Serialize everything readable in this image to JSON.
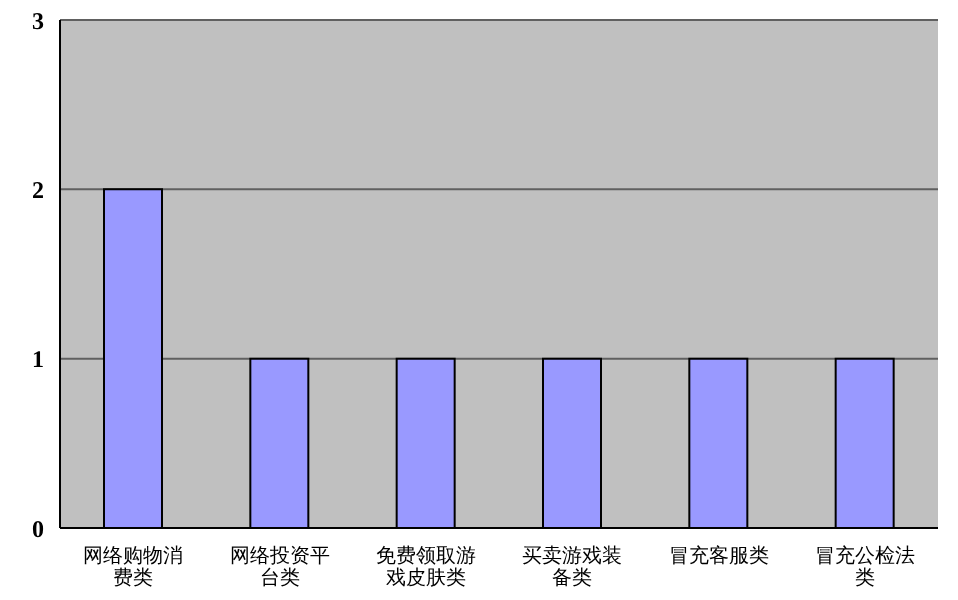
{
  "chart_data": {
    "type": "bar",
    "categories": [
      "网络购物消费类",
      "网络投资平台类",
      "免费领取游戏皮肤类",
      "买卖游戏装备类",
      "冒充客服类",
      "冒充公检法类"
    ],
    "values": [
      2,
      1,
      1,
      1,
      1,
      1
    ],
    "color": "#9999ff",
    "ylim": [
      0,
      3
    ],
    "yticks": [
      0,
      1,
      2,
      3
    ],
    "grid": "y"
  }
}
